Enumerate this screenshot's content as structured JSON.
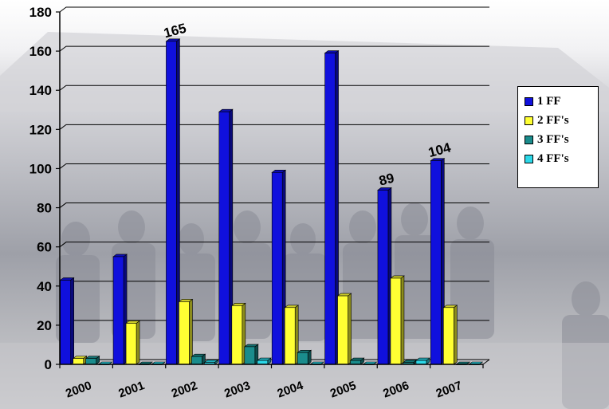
{
  "chart_data": {
    "type": "bar",
    "categories": [
      "2000",
      "2001",
      "2002",
      "2003",
      "2004",
      "2005",
      "2006",
      "2007"
    ],
    "series": [
      {
        "name": "1 FF",
        "color": "#1010dd",
        "values": [
          43,
          55,
          165,
          129,
          98,
          159,
          89,
          104
        ]
      },
      {
        "name": "2 FF's",
        "color": "#ffff33",
        "values": [
          3,
          21,
          32,
          30,
          29,
          35,
          44,
          29
        ]
      },
      {
        "name": "3 FF's",
        "color": "#1a8c8c",
        "values": [
          3,
          0,
          4,
          9,
          6,
          2,
          1,
          0
        ]
      },
      {
        "name": "4 FF's",
        "color": "#2cd8e8",
        "values": [
          0,
          0,
          1,
          2,
          0,
          0,
          2,
          0
        ]
      }
    ],
    "data_labels": [
      {
        "series": "1 FF",
        "category": "2002",
        "text": "165"
      },
      {
        "series": "1 FF",
        "category": "2006",
        "text": "89"
      },
      {
        "series": "1 FF",
        "category": "2007",
        "text": "104"
      }
    ],
    "ylim": [
      0,
      180
    ],
    "yticks": [
      0,
      20,
      40,
      60,
      80,
      100,
      120,
      140,
      160,
      180
    ],
    "grid": true,
    "legend_position": "right",
    "three_d": true,
    "background": "photo of rescue team"
  }
}
